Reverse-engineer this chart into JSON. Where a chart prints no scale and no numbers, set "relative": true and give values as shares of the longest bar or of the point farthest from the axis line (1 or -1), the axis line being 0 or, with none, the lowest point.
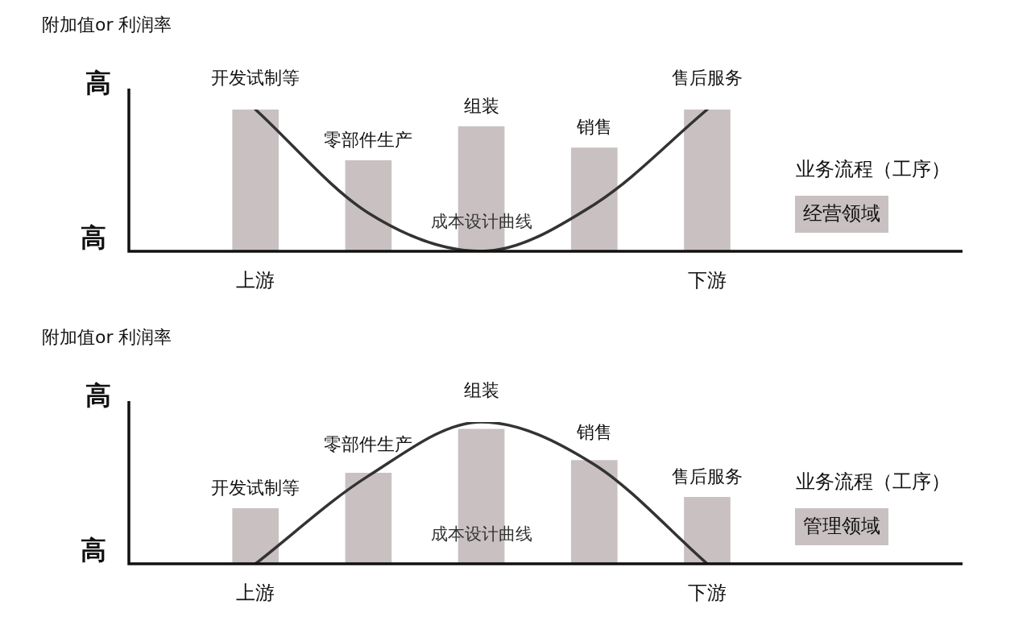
{
  "chart_data": [
    {
      "type": "bar",
      "relative": true,
      "ylabel": "附加值or 利润率",
      "xlabel": "业务流程（工序）",
      "legend": "right",
      "marker": "none",
      "categories": [
        "开发试制等",
        "零部件生产",
        "组装",
        "销售",
        "售后服务"
      ],
      "annotations": [
        "高",
        "高",
        "上游",
        "下游"
      ],
      "series": [
        {
          "name": "经营领域",
          "color": "#c9c1c1",
          "values": [
            1,
            0.64,
            0.88,
            0.73,
            1
          ]
        },
        {
          "name": "成本设计曲线",
          "type": "line",
          "color": "#333333",
          "values": [
            1,
            0.27,
            0,
            0.33,
            1
          ]
        }
      ]
    },
    {
      "type": "bar",
      "relative": true,
      "ylabel": "附加值or 利润率",
      "xlabel": "业务流程（工序）",
      "legend": "right",
      "marker": "none",
      "categories": [
        "开发试制等",
        "零部件生产",
        "组装",
        "销售",
        "售后服务"
      ],
      "annotations": [
        "高",
        "高",
        "上游",
        "下游"
      ],
      "series": [
        {
          "name": "管理领域",
          "color": "#c9c1c1",
          "values": [
            0.39,
            0.64,
            0.95,
            0.73,
            0.47
          ]
        },
        {
          "name": "成本设计曲线",
          "type": "line",
          "color": "#333333",
          "values": [
            0,
            0.62,
            1,
            0.7,
            0
          ]
        }
      ]
    }
  ]
}
